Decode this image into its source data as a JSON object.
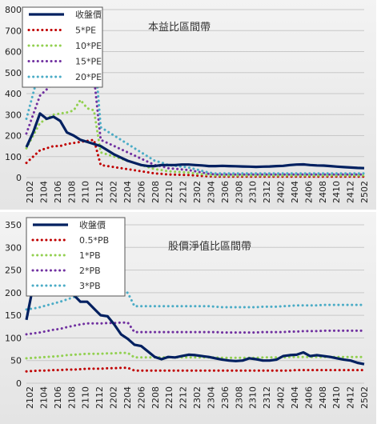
{
  "chart_data": [
    {
      "type": "line",
      "title": "本益比區間帶",
      "ylim": [
        0,
        800
      ],
      "yticks": [
        0,
        100,
        200,
        300,
        400,
        500,
        600,
        700,
        800
      ],
      "x_labels": [
        "2102",
        "2104",
        "2106",
        "2108",
        "2110",
        "2112",
        "2202",
        "2204",
        "2206",
        "2208",
        "2210",
        "2212",
        "2302",
        "2304",
        "2306",
        "2308",
        "2310",
        "2312",
        "2402",
        "2404",
        "2406",
        "2408",
        "2410",
        "2412",
        "2502"
      ],
      "legend_placement": "top-left",
      "series": [
        {
          "name": "收盤價",
          "color": "#002060",
          "dash": "solid",
          "values": [
            145,
            215,
            305,
            280,
            290,
            270,
            215,
            200,
            180,
            170,
            160,
            150,
            130,
            110,
            95,
            80,
            70,
            60,
            55,
            55,
            60,
            60,
            60,
            62,
            62,
            60,
            58,
            55,
            55,
            56,
            55,
            54,
            53,
            52,
            51,
            52,
            53,
            55,
            56,
            60,
            62,
            63,
            60,
            58,
            57,
            55,
            52,
            50,
            48,
            46,
            45
          ]
        },
        {
          "name": "5*PE",
          "color": "#c00000",
          "dash": "dot",
          "values": [
            70,
            100,
            130,
            140,
            150,
            150,
            160,
            165,
            170,
            175,
            180,
            60,
            55,
            50,
            45,
            40,
            35,
            30,
            25,
            20,
            18,
            15,
            14,
            13,
            12,
            10,
            8,
            6,
            5,
            5,
            5,
            5,
            5,
            5,
            5,
            5,
            5,
            5,
            5,
            5,
            5,
            5,
            5,
            5,
            5,
            5,
            5,
            5,
            5,
            5,
            5
          ]
        },
        {
          "name": "10*PE",
          "color": "#92d050",
          "dash": "dot",
          "values": [
            140,
            200,
            260,
            280,
            300,
            305,
            310,
            320,
            370,
            330,
            320,
            120,
            110,
            100,
            90,
            80,
            70,
            60,
            50,
            40,
            36,
            30,
            28,
            26,
            24,
            20,
            16,
            12,
            10,
            10,
            10,
            10,
            10,
            10,
            10,
            10,
            10,
            10,
            10,
            10,
            10,
            10,
            10,
            10,
            10,
            10,
            10,
            10,
            10,
            10,
            10
          ]
        },
        {
          "name": "15*PE",
          "color": "#7030a0",
          "dash": "dot",
          "values": [
            210,
            300,
            390,
            420,
            450,
            460,
            470,
            480,
            555,
            500,
            480,
            180,
            165,
            150,
            135,
            120,
            105,
            90,
            75,
            60,
            54,
            45,
            42,
            39,
            36,
            30,
            24,
            18,
            15,
            15,
            15,
            15,
            15,
            15,
            15,
            15,
            15,
            15,
            15,
            15,
            15,
            15,
            15,
            15,
            15,
            15,
            15,
            15,
            15,
            15,
            15
          ]
        },
        {
          "name": "20*PE",
          "color": "#4bacc6",
          "dash": "dot",
          "values": [
            280,
            400,
            520,
            560,
            600,
            610,
            620,
            640,
            740,
            660,
            640,
            240,
            220,
            200,
            180,
            160,
            140,
            120,
            100,
            80,
            72,
            60,
            56,
            52,
            48,
            40,
            32,
            24,
            20,
            20,
            20,
            20,
            20,
            20,
            20,
            20,
            20,
            20,
            20,
            20,
            20,
            20,
            20,
            20,
            20,
            20,
            20,
            20,
            20,
            20,
            20
          ]
        }
      ]
    },
    {
      "type": "line",
      "title": "股價淨值比區間帶",
      "ylim": [
        0,
        350
      ],
      "yticks": [
        0,
        50,
        100,
        150,
        200,
        250,
        300,
        350
      ],
      "x_labels": [
        "2102",
        "2104",
        "2106",
        "2108",
        "2110",
        "2112",
        "2202",
        "2204",
        "2206",
        "2208",
        "2210",
        "2212",
        "2302",
        "2304",
        "2306",
        "2308",
        "2310",
        "2312",
        "2402",
        "2404",
        "2406",
        "2408",
        "2410",
        "2412",
        "2502"
      ],
      "legend_placement": "top-left",
      "series": [
        {
          "name": "收盤價",
          "color": "#002060",
          "dash": "solid",
          "values": [
            140,
            215,
            300,
            280,
            290,
            240,
            215,
            195,
            180,
            180,
            165,
            150,
            148,
            130,
            108,
            98,
            85,
            82,
            70,
            58,
            53,
            58,
            57,
            60,
            63,
            62,
            60,
            58,
            55,
            52,
            50,
            49,
            50,
            55,
            53,
            50,
            50,
            52,
            60,
            62,
            63,
            68,
            60,
            62,
            60,
            58,
            55,
            52,
            50,
            45,
            42
          ]
        },
        {
          "name": "0.5*PB",
          "color": "#c00000",
          "dash": "dot",
          "values": [
            26,
            27,
            28,
            28,
            29,
            29,
            30,
            30,
            31,
            32,
            32,
            32,
            33,
            33,
            34,
            34,
            28,
            28,
            28,
            28,
            28,
            28,
            28,
            28,
            28,
            28,
            28,
            28,
            28,
            28,
            28,
            28,
            28,
            28,
            28,
            28,
            28,
            28,
            28,
            28,
            29,
            29,
            29,
            29,
            29,
            29,
            29,
            29,
            29,
            29,
            29
          ]
        },
        {
          "name": "1*PB",
          "color": "#92d050",
          "dash": "dot",
          "values": [
            55,
            56,
            57,
            58,
            59,
            60,
            62,
            63,
            64,
            65,
            65,
            65,
            66,
            66,
            67,
            67,
            57,
            57,
            57,
            57,
            57,
            57,
            57,
            57,
            57,
            57,
            57,
            57,
            57,
            56,
            56,
            56,
            56,
            56,
            56,
            57,
            57,
            57,
            57,
            58,
            58,
            58,
            58,
            58,
            58,
            58,
            58,
            58,
            58,
            58,
            58
          ]
        },
        {
          "name": "2*PB",
          "color": "#7030a0",
          "dash": "dot",
          "values": [
            108,
            110,
            112,
            115,
            118,
            120,
            124,
            127,
            130,
            132,
            132,
            132,
            133,
            133,
            134,
            134,
            113,
            113,
            113,
            113,
            113,
            113,
            113,
            113,
            113,
            113,
            113,
            113,
            113,
            112,
            112,
            112,
            112,
            112,
            112,
            113,
            113,
            113,
            113,
            114,
            114,
            115,
            115,
            115,
            116,
            116,
            116,
            116,
            116,
            116,
            116
          ]
        },
        {
          "name": "3*PB",
          "color": "#4bacc6",
          "dash": "dot",
          "values": [
            163,
            165,
            168,
            172,
            176,
            180,
            185,
            190,
            195,
            198,
            198,
            198,
            199,
            199,
            200,
            200,
            170,
            170,
            170,
            170,
            170,
            170,
            170,
            170,
            170,
            170,
            170,
            170,
            169,
            168,
            168,
            168,
            168,
            168,
            168,
            169,
            169,
            169,
            170,
            171,
            172,
            172,
            172,
            172,
            173,
            173,
            173,
            173,
            173,
            173,
            173
          ]
        }
      ]
    }
  ]
}
